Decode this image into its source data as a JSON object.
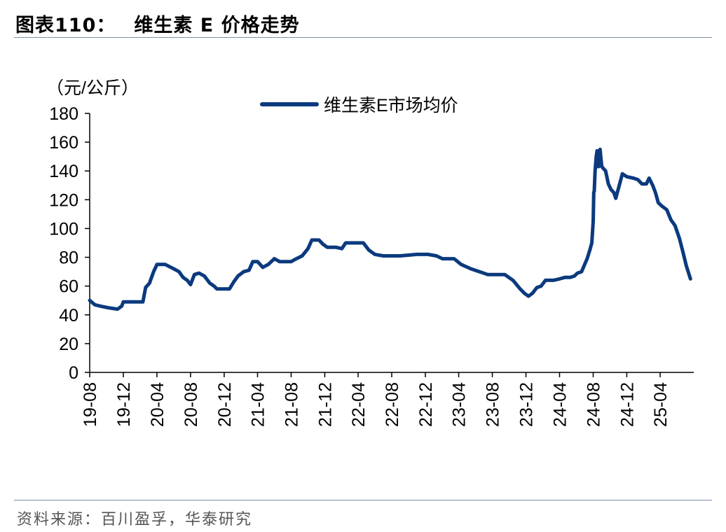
{
  "header": {
    "title_prefix": "图表110：",
    "title_text": "维生素 E 价格走势"
  },
  "footer": {
    "source": "资料来源：百川盈孚，华泰研究"
  },
  "colors": {
    "series": "#0b3a7e",
    "axis": "#000000",
    "rule": "#7f8fa6"
  },
  "chart_data": {
    "type": "line",
    "title": "",
    "unit_label": "（元/公斤）",
    "xlabel": "",
    "ylabel": "",
    "ylim": [
      0,
      180
    ],
    "yticks": [
      0,
      20,
      40,
      60,
      80,
      100,
      120,
      140,
      160,
      180
    ],
    "xticks": [
      "19-08",
      "19-12",
      "20-04",
      "20-08",
      "20-12",
      "21-04",
      "21-08",
      "21-12",
      "22-04",
      "22-08",
      "22-12",
      "23-04",
      "23-08",
      "23-12",
      "24-04",
      "24-08",
      "24-12",
      "25-04"
    ],
    "grid": false,
    "legend_position": "top-center",
    "series": [
      {
        "name": "维生素E市场均价",
        "points": [
          [
            "2019-08-01",
            50
          ],
          [
            "2019-08-20",
            47
          ],
          [
            "2019-09-10",
            46
          ],
          [
            "2019-10-05",
            45
          ],
          [
            "2019-11-10",
            44
          ],
          [
            "2019-11-25",
            46
          ],
          [
            "2019-12-01",
            49
          ],
          [
            "2019-12-20",
            49
          ],
          [
            "2020-01-10",
            49
          ],
          [
            "2020-02-10",
            49
          ],
          [
            "2020-02-20",
            59
          ],
          [
            "2020-03-05",
            62
          ],
          [
            "2020-03-20",
            70
          ],
          [
            "2020-04-01",
            75
          ],
          [
            "2020-05-01",
            75
          ],
          [
            "2020-06-01",
            72
          ],
          [
            "2020-06-20",
            70
          ],
          [
            "2020-07-05",
            66
          ],
          [
            "2020-07-20",
            64
          ],
          [
            "2020-08-01",
            61
          ],
          [
            "2020-08-15",
            68
          ],
          [
            "2020-09-01",
            69
          ],
          [
            "2020-09-20",
            67
          ],
          [
            "2020-10-10",
            62
          ],
          [
            "2020-10-25",
            60
          ],
          [
            "2020-11-05",
            58
          ],
          [
            "2020-12-01",
            58
          ],
          [
            "2020-12-20",
            58
          ],
          [
            "2021-01-05",
            63
          ],
          [
            "2021-01-20",
            67
          ],
          [
            "2021-02-10",
            70
          ],
          [
            "2021-03-01",
            71
          ],
          [
            "2021-03-15",
            77
          ],
          [
            "2021-04-01",
            77
          ],
          [
            "2021-04-20",
            73
          ],
          [
            "2021-05-10",
            75
          ],
          [
            "2021-06-01",
            79
          ],
          [
            "2021-06-20",
            77
          ],
          [
            "2021-07-15",
            77
          ],
          [
            "2021-08-01",
            77
          ],
          [
            "2021-08-20",
            79
          ],
          [
            "2021-09-10",
            81
          ],
          [
            "2021-10-01",
            86
          ],
          [
            "2021-10-15",
            92
          ],
          [
            "2021-11-10",
            92
          ],
          [
            "2021-11-25",
            89
          ],
          [
            "2021-12-10",
            87
          ],
          [
            "2022-01-10",
            87
          ],
          [
            "2022-02-01",
            86
          ],
          [
            "2022-02-15",
            90
          ],
          [
            "2022-03-10",
            90
          ],
          [
            "2022-04-20",
            90
          ],
          [
            "2022-05-10",
            85
          ],
          [
            "2022-06-01",
            82
          ],
          [
            "2022-07-01",
            81
          ],
          [
            "2022-09-01",
            81
          ],
          [
            "2022-11-01",
            82
          ],
          [
            "2022-12-10",
            82
          ],
          [
            "2023-01-10",
            81
          ],
          [
            "2023-02-01",
            79
          ],
          [
            "2023-03-15",
            79
          ],
          [
            "2023-04-10",
            75
          ],
          [
            "2023-05-15",
            72
          ],
          [
            "2023-06-15",
            70
          ],
          [
            "2023-07-15",
            68
          ],
          [
            "2023-08-15",
            68
          ],
          [
            "2023-09-15",
            68
          ],
          [
            "2023-10-15",
            64
          ],
          [
            "2023-11-10",
            58
          ],
          [
            "2023-11-25",
            55
          ],
          [
            "2023-12-10",
            53
          ],
          [
            "2023-12-25",
            55
          ],
          [
            "2024-01-10",
            59
          ],
          [
            "2024-01-25",
            60
          ],
          [
            "2024-02-10",
            64
          ],
          [
            "2024-03-10",
            64
          ],
          [
            "2024-04-01",
            65
          ],
          [
            "2024-04-20",
            66
          ],
          [
            "2024-05-10",
            66
          ],
          [
            "2024-05-25",
            67
          ],
          [
            "2024-06-05",
            69
          ],
          [
            "2024-06-20",
            70
          ],
          [
            "2024-07-01",
            75
          ],
          [
            "2024-07-10",
            79
          ],
          [
            "2024-07-20",
            85
          ],
          [
            "2024-07-27",
            90
          ],
          [
            "2024-08-01",
            105
          ],
          [
            "2024-08-03",
            125
          ],
          [
            "2024-08-05",
            126
          ],
          [
            "2024-08-08",
            140
          ],
          [
            "2024-08-12",
            150
          ],
          [
            "2024-08-15",
            154
          ],
          [
            "2024-08-20",
            143
          ],
          [
            "2024-08-26",
            155
          ],
          [
            "2024-09-01",
            143
          ],
          [
            "2024-09-15",
            140
          ],
          [
            "2024-09-25",
            131
          ],
          [
            "2024-10-05",
            127
          ],
          [
            "2024-10-15",
            125
          ],
          [
            "2024-10-22",
            121
          ],
          [
            "2024-11-01",
            128
          ],
          [
            "2024-11-15",
            138
          ],
          [
            "2024-12-01",
            136
          ],
          [
            "2024-12-25",
            135
          ],
          [
            "2025-01-10",
            134
          ],
          [
            "2025-01-25",
            131
          ],
          [
            "2025-02-10",
            131
          ],
          [
            "2025-02-20",
            135
          ],
          [
            "2025-03-05",
            130
          ],
          [
            "2025-03-15",
            125
          ],
          [
            "2025-03-25",
            118
          ],
          [
            "2025-04-05",
            116
          ],
          [
            "2025-04-25",
            113
          ],
          [
            "2025-05-10",
            106
          ],
          [
            "2025-05-25",
            102
          ],
          [
            "2025-06-10",
            93
          ],
          [
            "2025-06-25",
            82
          ],
          [
            "2025-07-05",
            74
          ],
          [
            "2025-07-20",
            65
          ]
        ]
      }
    ]
  }
}
